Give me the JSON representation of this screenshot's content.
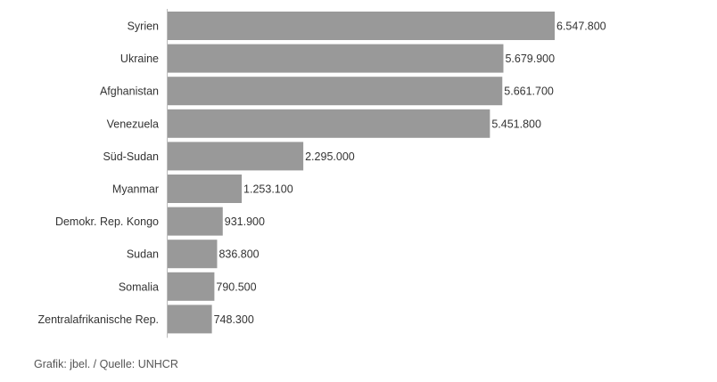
{
  "chart_data": {
    "type": "bar",
    "orientation": "horizontal",
    "categories": [
      "Syrien",
      "Ukraine",
      "Afghanistan",
      "Venezuela",
      "Süd-Sudan",
      "Myanmar",
      "Demokr. Rep. Kongo",
      "Sudan",
      "Somalia",
      "Zentralafrikanische Rep."
    ],
    "values": [
      6547800,
      5679900,
      5661700,
      5451800,
      2295000,
      1253100,
      931900,
      836800,
      790500,
      748300
    ],
    "value_labels": [
      "6.547.800",
      "5.679.900",
      "5.661.700",
      "5.451.800",
      "2.295.000",
      "1.253.100",
      "931.900",
      "836.800",
      "790.500",
      "748.300"
    ],
    "xlim": [
      0,
      6547800
    ],
    "bar_color": "#999999",
    "grid": false
  },
  "footer": {
    "credit": "Grafik: jbel. / Quelle: UNHCR"
  }
}
